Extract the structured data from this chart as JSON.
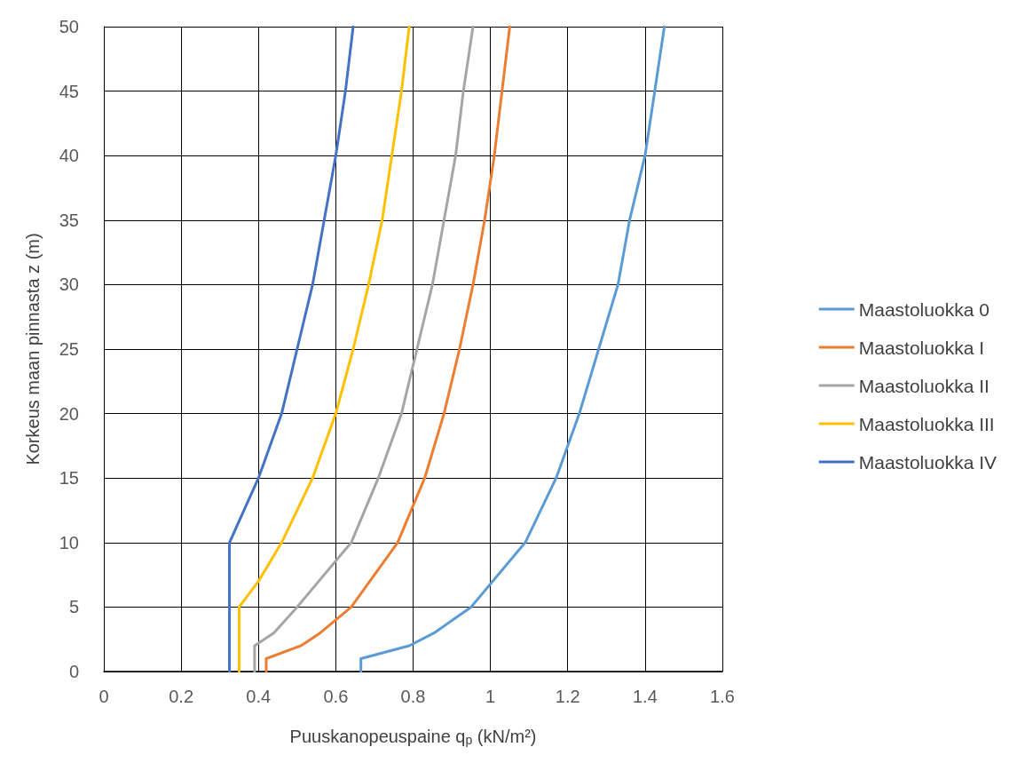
{
  "chart_data": {
    "type": "line",
    "xlabel": "Puuskanopeuspaine q$_{p}$ (kN/m²)",
    "ylabel": "Korkeus maan pinnasta z (m)",
    "xlim": [
      0,
      1.6
    ],
    "xticks": [
      0,
      0.2,
      0.4,
      0.6,
      0.8,
      1,
      1.2,
      1.4,
      1.6
    ],
    "ylim": [
      0,
      50
    ],
    "yticks": [
      0,
      5,
      10,
      15,
      20,
      25,
      30,
      35,
      40,
      45,
      50
    ],
    "grid": true,
    "legend": "right",
    "marker": "none",
    "line_style": "solid",
    "series": [
      {
        "name": "Maastoluokka 0",
        "color": "#5b9bd5",
        "x": [
          0.665,
          0.665,
          0.79,
          0.855,
          0.95,
          1.09,
          1.17,
          1.23,
          1.28,
          1.33,
          1.36,
          1.4,
          1.425,
          1.45
        ],
        "values": [
          0,
          1,
          2,
          3,
          5,
          10,
          15,
          20,
          25,
          30,
          35,
          40,
          45,
          50
        ]
      },
      {
        "name": "Maastoluokka I",
        "color": "#ed7d31",
        "x": [
          0.42,
          0.42,
          0.51,
          0.56,
          0.64,
          0.76,
          0.83,
          0.88,
          0.92,
          0.955,
          0.985,
          1.01,
          1.03,
          1.05
        ],
        "values": [
          0,
          1,
          2,
          3,
          5,
          10,
          15,
          20,
          25,
          30,
          35,
          40,
          45,
          50
        ]
      },
      {
        "name": "Maastoluokka II",
        "color": "#a5a5a5",
        "x": [
          0.39,
          0.39,
          0.44,
          0.5,
          0.64,
          0.71,
          0.77,
          0.81,
          0.85,
          0.88,
          0.91,
          0.93,
          0.955
        ],
        "values": [
          0,
          2,
          3,
          5,
          10,
          15,
          20,
          25,
          30,
          35,
          40,
          45,
          50
        ]
      },
      {
        "name": "Maastoluokka III",
        "color": "#ffc000",
        "x": [
          0.35,
          0.35,
          0.4,
          0.46,
          0.54,
          0.6,
          0.645,
          0.685,
          0.72,
          0.745,
          0.77,
          0.79
        ],
        "values": [
          0,
          5,
          7,
          10,
          15,
          20,
          25,
          30,
          35,
          40,
          45,
          50
        ]
      },
      {
        "name": "Maastoluokka IV",
        "color": "#4472c4",
        "x": [
          0.325,
          0.325,
          0.4,
          0.46,
          0.5,
          0.54,
          0.57,
          0.6,
          0.625,
          0.645
        ],
        "values": [
          0,
          10,
          15,
          20,
          25,
          30,
          35,
          40,
          45,
          50
        ]
      }
    ]
  }
}
